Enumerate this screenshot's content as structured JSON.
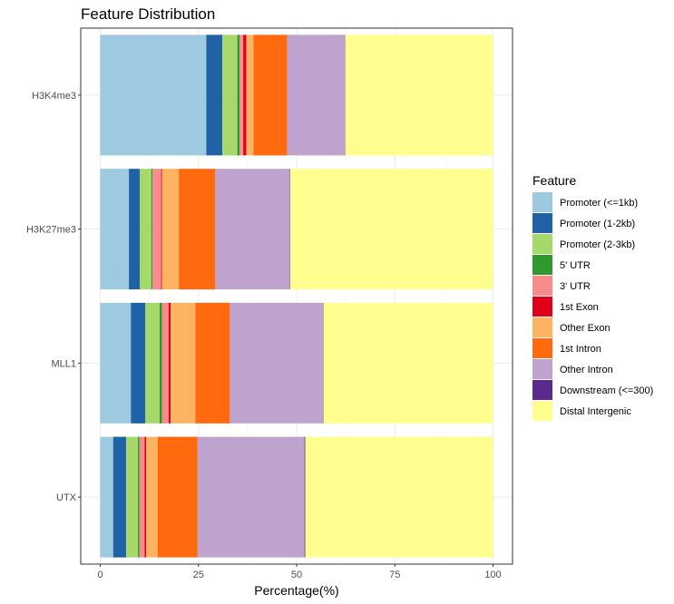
{
  "chart_data": {
    "type": "bar",
    "orientation": "horizontal",
    "stacked": true,
    "title": "Feature Distribution",
    "xlabel": "Percentage(%)",
    "ylabel": "",
    "xlim": [
      0,
      100
    ],
    "x_ticks": [
      "0",
      "25",
      "50",
      "75",
      "100"
    ],
    "grid": true,
    "legend_position": "right",
    "legend_title": "Feature",
    "categories": [
      "H3K4me3",
      "H3K27me3",
      "MLL1",
      "UTX"
    ],
    "series": [
      {
        "name": "Promoter (<=1kb)",
        "color": "#9ecae1",
        "values": [
          27.0,
          7.3,
          7.8,
          3.3
        ]
      },
      {
        "name": "Promoter (1-2kb)",
        "color": "#1f63a6",
        "values": [
          4.1,
          2.8,
          3.7,
          3.3
        ]
      },
      {
        "name": "Promoter (2-3kb)",
        "color": "#a6d96a",
        "values": [
          3.8,
          2.9,
          3.6,
          3.0
        ]
      },
      {
        "name": "5' UTR",
        "color": "#2e9a2e",
        "values": [
          0.6,
          0.3,
          0.6,
          0.4
        ]
      },
      {
        "name": "3' UTR",
        "color": "#f88c8c",
        "values": [
          0.9,
          2.2,
          1.7,
          1.3
        ]
      },
      {
        "name": "1st Exon",
        "color": "#e0001b",
        "values": [
          0.8,
          0.2,
          0.5,
          0.4
        ]
      },
      {
        "name": "Other Exon",
        "color": "#fdb462",
        "values": [
          1.8,
          4.3,
          6.3,
          2.9
        ]
      },
      {
        "name": "1st Intron",
        "color": "#ff6a0f",
        "values": [
          8.6,
          9.3,
          8.8,
          10.2
        ]
      },
      {
        "name": "Other Intron",
        "color": "#bea3ce",
        "values": [
          14.7,
          19.0,
          23.7,
          27.2
        ]
      },
      {
        "name": "Downstream (<=300)",
        "color": "#5b2a8c",
        "values": [
          0.1,
          0.1,
          0.1,
          0.2
        ]
      },
      {
        "name": "Distal Intergenic",
        "color": "#ffff8f",
        "values": [
          37.6,
          51.6,
          43.2,
          47.8
        ]
      }
    ]
  }
}
